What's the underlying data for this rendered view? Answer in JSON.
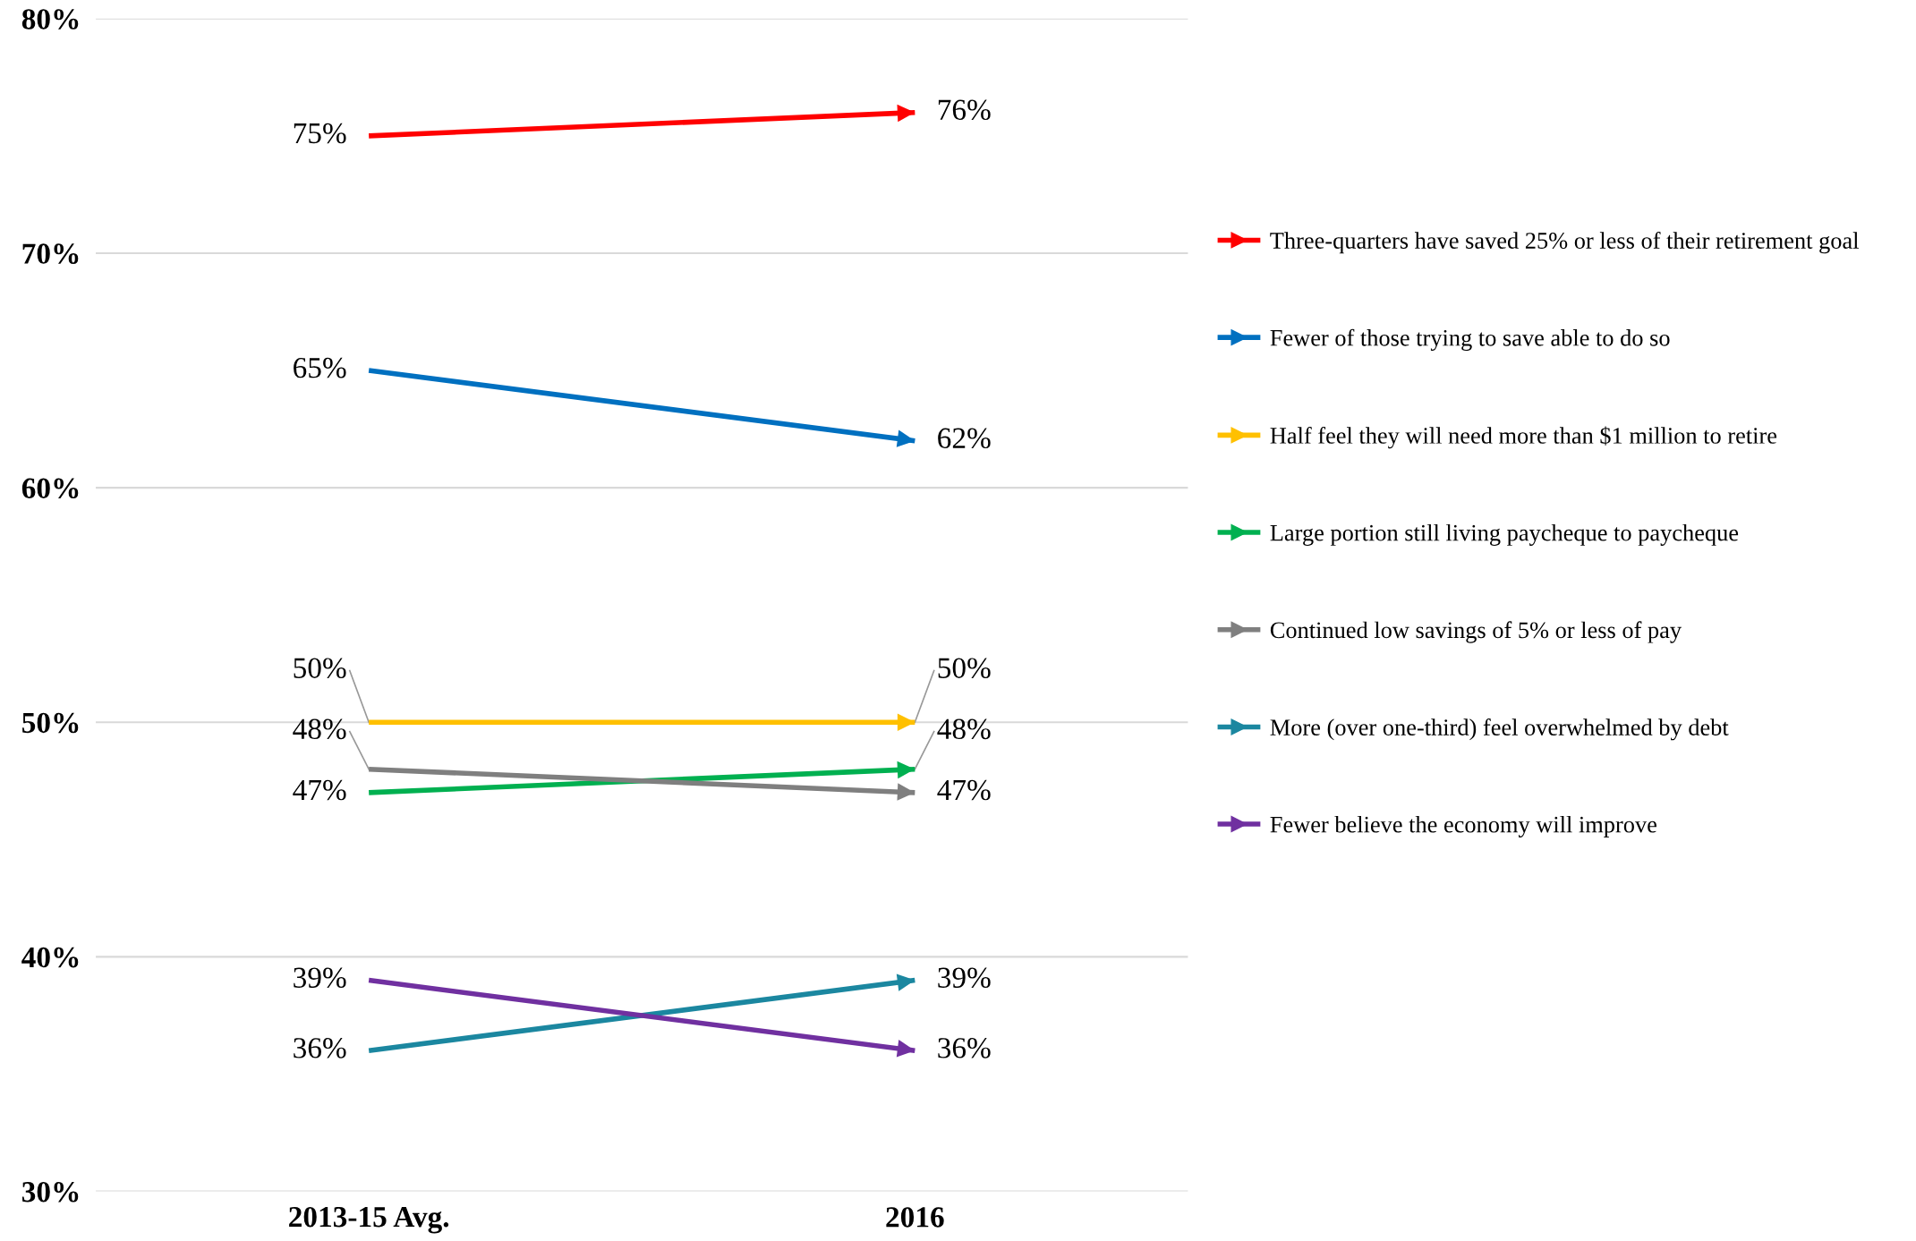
{
  "chart_data": {
    "type": "line",
    "categories": [
      "2013-15 Avg.",
      "2016"
    ],
    "series": [
      {
        "name": "Three-quarters have saved 25% or less of their retirement goal",
        "color": "#ff0000",
        "values": [
          75,
          76
        ],
        "value_labels": [
          "75%",
          "76%"
        ]
      },
      {
        "name": "Fewer of those trying to save able to do so",
        "color": "#0070c0",
        "values": [
          65,
          62
        ],
        "value_labels": [
          "65%",
          "62%"
        ]
      },
      {
        "name": "Half feel they will need more than $1 million to retire",
        "color": "#ffc000",
        "values": [
          50,
          50
        ],
        "value_labels": [
          "50%",
          "50%"
        ]
      },
      {
        "name": "Large portion still living paycheque to paycheque",
        "color": "#00b050",
        "values": [
          47,
          48
        ],
        "value_labels": [
          "47%",
          "48%"
        ]
      },
      {
        "name": "Continued low savings of 5% or less of pay",
        "color": "#7f7f7f",
        "values": [
          48,
          47
        ],
        "value_labels": [
          "48%",
          "47%"
        ]
      },
      {
        "name": "More (over one-third) feel overwhelmed by debt",
        "color": "#1b87a0",
        "values": [
          36,
          39
        ],
        "value_labels": [
          "36%",
          "39%"
        ]
      },
      {
        "name": "Fewer believe the economy will improve",
        "color": "#7030a0",
        "values": [
          39,
          36
        ],
        "value_labels": [
          "39%",
          "36%"
        ]
      }
    ],
    "ylim": [
      30,
      80
    ],
    "yticks": [
      {
        "value": 30,
        "label": "30%"
      },
      {
        "value": 40,
        "label": "40%"
      },
      {
        "value": 50,
        "label": "50%"
      },
      {
        "value": 60,
        "label": "60%"
      },
      {
        "value": 70,
        "label": "70%"
      },
      {
        "value": 80,
        "label": "80%"
      }
    ],
    "grid": "y",
    "legend": "right",
    "line_style": "solid"
  }
}
